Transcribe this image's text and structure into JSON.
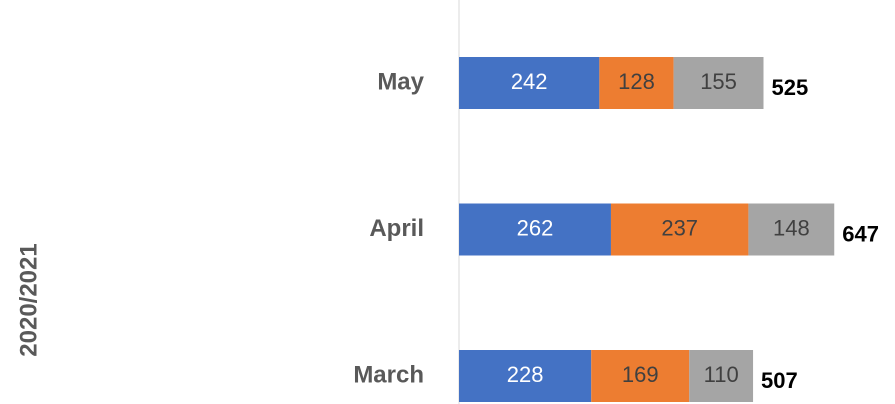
{
  "chart_data": {
    "type": "stacked-bar-horizontal",
    "group_label": "2020/2021",
    "categories": [
      "March",
      "April",
      "May"
    ],
    "series": [
      {
        "color": "#4472c4",
        "values": [
          228,
          262,
          242
        ]
      },
      {
        "color": "#ed7d31",
        "values": [
          169,
          237,
          128
        ]
      },
      {
        "color": "#a5a5a5",
        "values": [
          110,
          148,
          155
        ]
      }
    ],
    "totals": [
      507,
      647,
      525
    ],
    "xlim": [
      0,
      750
    ]
  }
}
